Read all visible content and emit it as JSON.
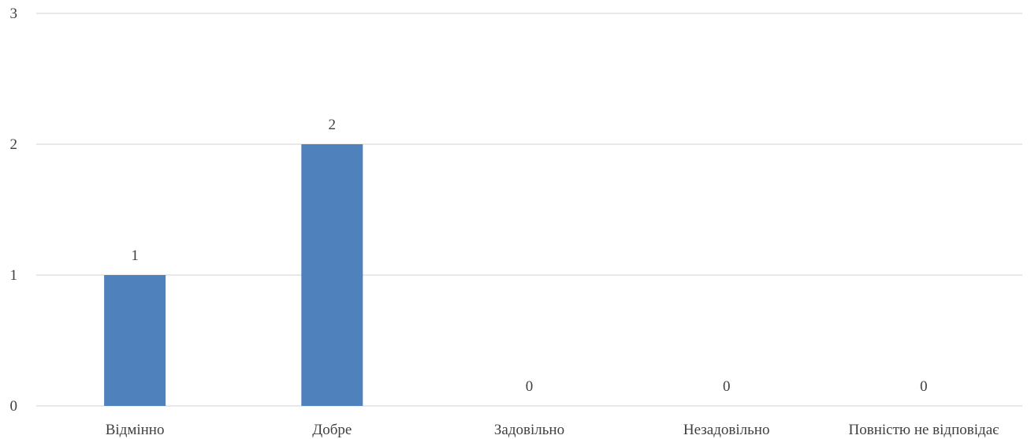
{
  "chart_data": {
    "type": "bar",
    "categories": [
      "Відмінно",
      "Добре",
      "Задовільно",
      "Незадовільно",
      "Повністю не відповідає"
    ],
    "values": [
      1,
      2,
      0,
      0,
      0
    ],
    "data_labels": [
      "1",
      "2",
      "0",
      "0",
      "0"
    ],
    "y_ticks": [
      "0",
      "1",
      "2",
      "3"
    ],
    "ylim": [
      0,
      3
    ],
    "grid": true,
    "legend": "none",
    "colors": {
      "bar": "#4f81bd",
      "grid": "#d9d9d9",
      "text": "#404040"
    }
  }
}
